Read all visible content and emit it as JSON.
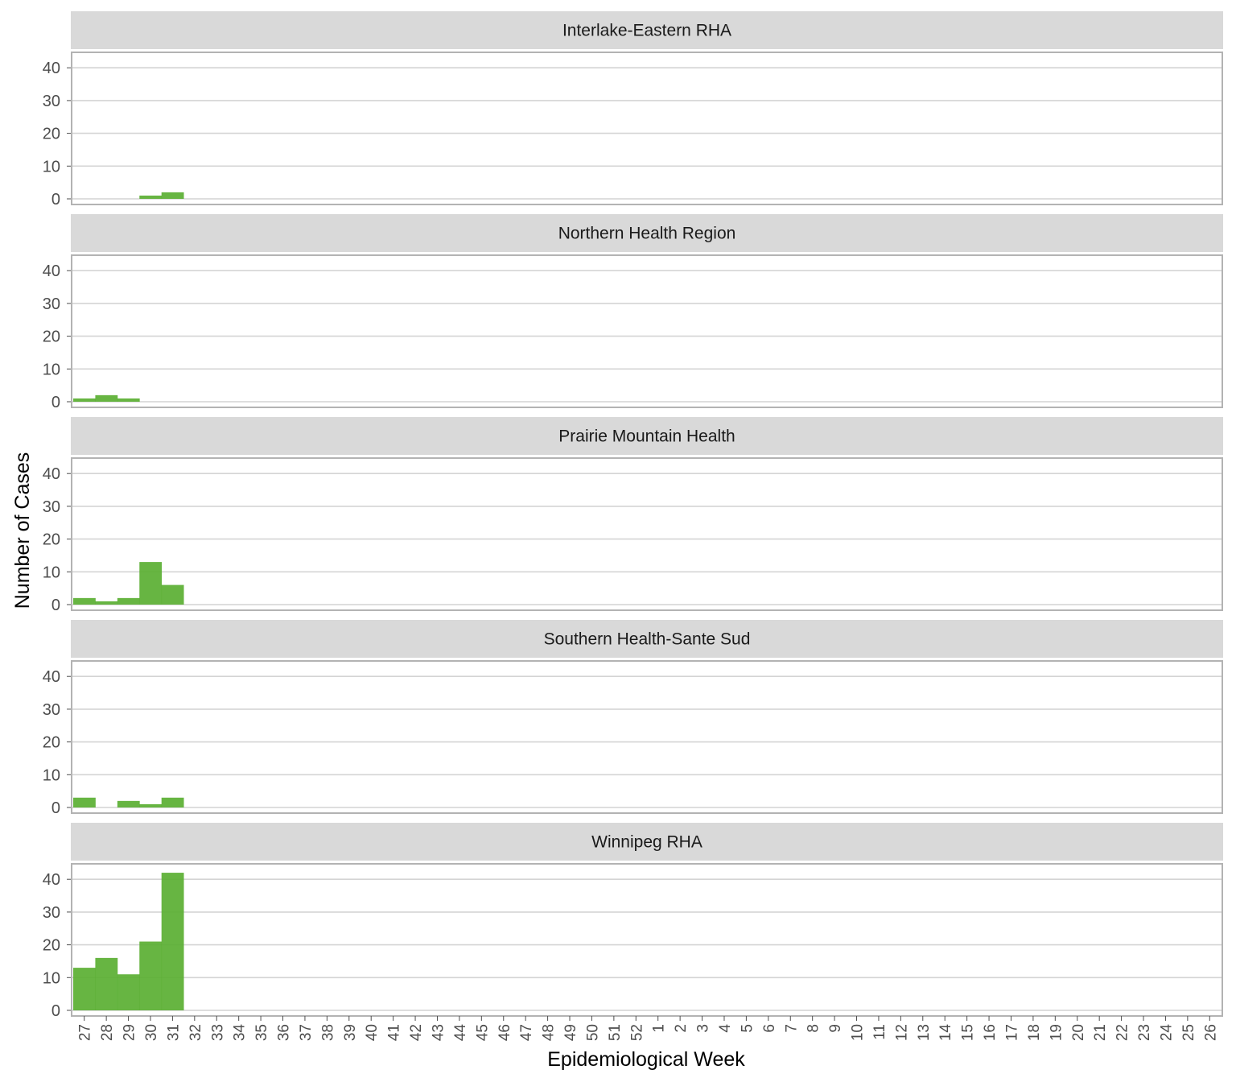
{
  "chart_data": {
    "type": "bar",
    "layout": "faceted",
    "xlabel": "Epidemiological Week",
    "ylabel": "Number of Cases",
    "ylim": [
      0,
      43
    ],
    "yticks": [
      0,
      10,
      20,
      30,
      40
    ],
    "grid": true,
    "bar_color": "#5aaf32",
    "categories": [
      "27",
      "28",
      "29",
      "30",
      "31",
      "32",
      "33",
      "34",
      "35",
      "36",
      "37",
      "38",
      "39",
      "40",
      "41",
      "42",
      "43",
      "44",
      "45",
      "46",
      "47",
      "48",
      "49",
      "50",
      "51",
      "52",
      "1",
      "2",
      "3",
      "4",
      "5",
      "6",
      "7",
      "8",
      "9",
      "10",
      "11",
      "12",
      "13",
      "14",
      "15",
      "16",
      "17",
      "18",
      "19",
      "20",
      "21",
      "22",
      "23",
      "24",
      "25",
      "26"
    ],
    "panels": [
      {
        "title": "Interlake-Eastern RHA",
        "values": {
          "30": 1,
          "31": 2
        }
      },
      {
        "title": "Northern Health Region",
        "values": {
          "27": 1,
          "28": 2,
          "29": 1
        }
      },
      {
        "title": "Prairie Mountain Health",
        "values": {
          "27": 2,
          "28": 1,
          "29": 2,
          "30": 13,
          "31": 6
        }
      },
      {
        "title": "Southern Health-Sante Sud",
        "values": {
          "27": 3,
          "29": 2,
          "30": 1,
          "31": 3
        }
      },
      {
        "title": "Winnipeg RHA",
        "values": {
          "27": 13,
          "28": 16,
          "29": 11,
          "30": 21,
          "31": 42
        }
      }
    ]
  }
}
